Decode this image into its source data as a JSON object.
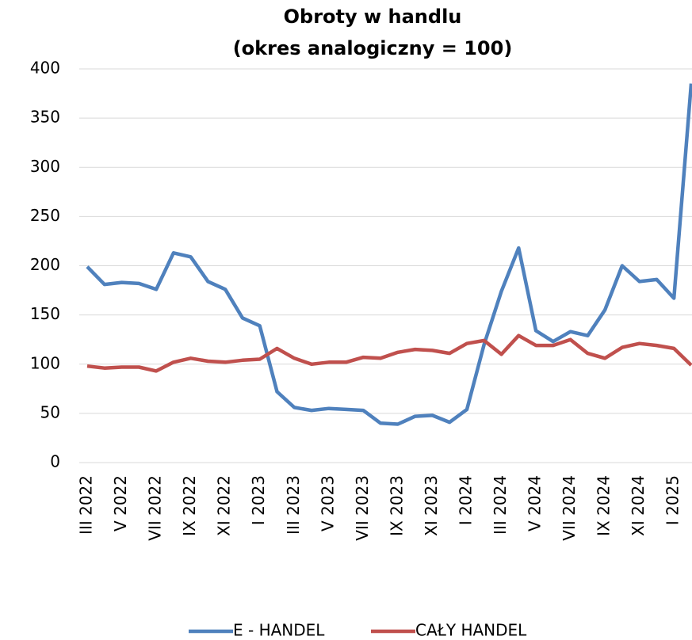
{
  "chart_data": {
    "type": "line",
    "title": "Obroty w handlu",
    "subtitle": "(okres analogiczny = 100)",
    "categories": [
      "III 2022",
      null,
      "V 2022",
      null,
      "VII 2022",
      null,
      "IX 2022",
      null,
      "XI 2022",
      null,
      "I 2023",
      null,
      "III 2023",
      null,
      "V 2023",
      null,
      "VII 2023",
      null,
      "IX 2023",
      null,
      "XI 2023",
      null,
      "I 2024",
      null,
      "III 2024",
      null,
      "V 2024",
      null,
      "VII 2024",
      null,
      "IX 2024",
      null,
      "XI 2024",
      null,
      "I 2025",
      null
    ],
    "series": [
      {
        "name": "E - HANDEL",
        "color": "#4f81bd",
        "values": [
          199,
          181,
          183,
          182,
          176,
          213,
          209,
          184,
          176,
          147,
          139,
          72,
          56,
          53,
          55,
          54,
          53,
          40,
          39,
          47,
          48,
          41,
          54,
          120,
          174,
          218,
          134,
          123,
          133,
          129,
          155,
          200,
          184,
          186,
          167,
          385
        ]
      },
      {
        "name": "CAŁY HANDEL",
        "color": "#c0504d",
        "values": [
          98,
          96,
          97,
          97,
          93,
          102,
          106,
          103,
          102,
          104,
          105,
          116,
          106,
          100,
          102,
          102,
          107,
          106,
          112,
          115,
          114,
          111,
          121,
          124,
          110,
          129,
          119,
          119,
          125,
          111,
          106,
          117,
          121,
          119,
          116,
          99
        ]
      }
    ],
    "ylim": [
      0,
      400
    ],
    "yticks": [
      0,
      50,
      100,
      150,
      200,
      250,
      300,
      350,
      400
    ],
    "grid": true,
    "legend": "bottom"
  }
}
